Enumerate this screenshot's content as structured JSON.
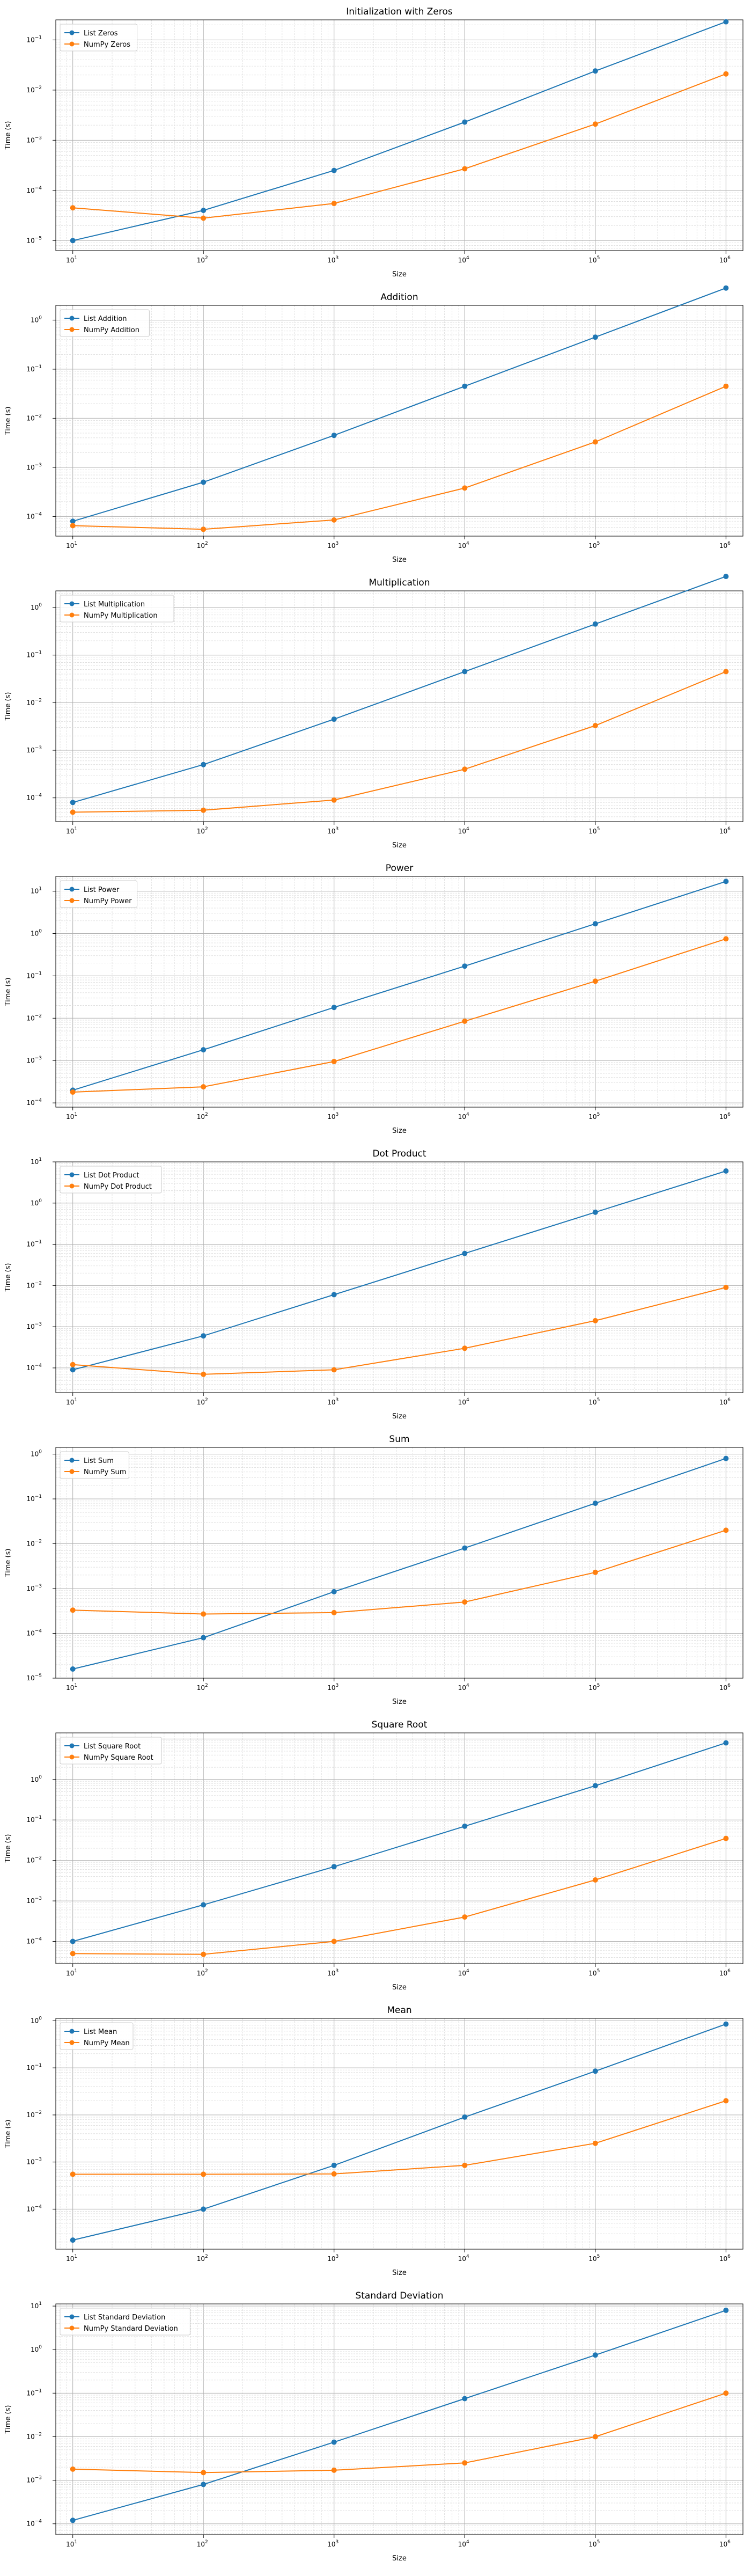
{
  "chart_data": [
    {
      "type": "line",
      "title": "Initialization with Zeros",
      "xlabel": "Size",
      "ylabel": "Time (s)",
      "xscale": "log",
      "yscale": "log",
      "x": [
        10,
        100,
        1000,
        10000,
        100000,
        1000000
      ],
      "xtick_bases": [
        "10",
        "10",
        "10",
        "10",
        "10",
        "10"
      ],
      "xtick_exps": [
        "1",
        "2",
        "3",
        "4",
        "5",
        "6"
      ],
      "yticks": [
        -5,
        -4,
        -3,
        -2,
        -1
      ],
      "ylim_exp": [
        -5.2,
        -0.6
      ],
      "grid": true,
      "legend": "upper-left",
      "series": [
        {
          "name": "List Zeros",
          "color": "#1f77b4",
          "values": [
            1e-05,
            4e-05,
            0.00025,
            0.0023,
            0.024,
            0.23
          ]
        },
        {
          "name": "NumPy Zeros",
          "color": "#ff7f0e",
          "values": [
            4.5e-05,
            2.8e-05,
            5.5e-05,
            0.00027,
            0.0021,
            0.021
          ]
        }
      ]
    },
    {
      "type": "line",
      "title": "Addition",
      "xlabel": "Size",
      "ylabel": "Time (s)",
      "xscale": "log",
      "yscale": "log",
      "x": [
        10,
        100,
        1000,
        10000,
        100000,
        1000000
      ],
      "xtick_bases": [
        "10",
        "10",
        "10",
        "10",
        "10",
        "10"
      ],
      "xtick_exps": [
        "1",
        "2",
        "3",
        "4",
        "5",
        "6"
      ],
      "yticks": [
        -4,
        -3,
        -2,
        -1,
        0
      ],
      "ylim_exp": [
        -4.4,
        0.3
      ],
      "grid": true,
      "legend": "upper-left",
      "series": [
        {
          "name": "List Addition",
          "color": "#1f77b4",
          "values": [
            8e-05,
            0.0005,
            0.0045,
            0.045,
            0.45,
            4.5
          ]
        },
        {
          "name": "NumPy Addition",
          "color": "#ff7f0e",
          "values": [
            6.5e-05,
            5.5e-05,
            8.5e-05,
            0.00038,
            0.0033,
            0.045
          ]
        }
      ]
    },
    {
      "type": "line",
      "title": "Multiplication",
      "xlabel": "Size",
      "ylabel": "Time (s)",
      "xscale": "log",
      "yscale": "log",
      "x": [
        10,
        100,
        1000,
        10000,
        100000,
        1000000
      ],
      "xtick_bases": [
        "10",
        "10",
        "10",
        "10",
        "10",
        "10"
      ],
      "xtick_exps": [
        "1",
        "2",
        "3",
        "4",
        "5",
        "6"
      ],
      "yticks": [
        -4,
        -3,
        -2,
        -1,
        0
      ],
      "ylim_exp": [
        -4.5,
        0.35
      ],
      "grid": true,
      "legend": "upper-left",
      "series": [
        {
          "name": "List Multiplication",
          "color": "#1f77b4",
          "values": [
            8e-05,
            0.0005,
            0.0045,
            0.045,
            0.45,
            4.5
          ]
        },
        {
          "name": "NumPy Multiplication",
          "color": "#ff7f0e",
          "values": [
            5e-05,
            5.5e-05,
            9e-05,
            0.0004,
            0.0033,
            0.045
          ]
        }
      ]
    },
    {
      "type": "line",
      "title": "Power",
      "xlabel": "Size",
      "ylabel": "Time (s)",
      "xscale": "log",
      "yscale": "log",
      "x": [
        10,
        100,
        1000,
        10000,
        100000,
        1000000
      ],
      "xtick_bases": [
        "10",
        "10",
        "10",
        "10",
        "10",
        "10"
      ],
      "xtick_exps": [
        "1",
        "2",
        "3",
        "4",
        "5",
        "6"
      ],
      "yticks": [
        -4,
        -3,
        -2,
        -1,
        0,
        1
      ],
      "ylim_exp": [
        -4.1,
        1.35
      ],
      "grid": true,
      "legend": "upper-left",
      "series": [
        {
          "name": "List Power",
          "color": "#1f77b4",
          "values": [
            0.0002,
            0.0018,
            0.018,
            0.17,
            1.7,
            17
          ]
        },
        {
          "name": "NumPy Power",
          "color": "#ff7f0e",
          "values": [
            0.00018,
            0.00024,
            0.00095,
            0.0085,
            0.075,
            0.75
          ]
        }
      ]
    },
    {
      "type": "line",
      "title": "Dot Product",
      "xlabel": "Size",
      "ylabel": "Time (s)",
      "xscale": "log",
      "yscale": "log",
      "x": [
        10,
        100,
        1000,
        10000,
        100000,
        1000000
      ],
      "xtick_bases": [
        "10",
        "10",
        "10",
        "10",
        "10",
        "10"
      ],
      "xtick_exps": [
        "1",
        "2",
        "3",
        "4",
        "5",
        "6"
      ],
      "yticks": [
        -4,
        -3,
        -2,
        -1,
        0,
        1
      ],
      "ylim_exp": [
        -4.6,
        1.0
      ],
      "grid": true,
      "legend": "upper-left",
      "series": [
        {
          "name": "List Dot Product",
          "color": "#1f77b4",
          "values": [
            9e-05,
            0.0006,
            0.006,
            0.06,
            0.6,
            6
          ]
        },
        {
          "name": "NumPy Dot Product",
          "color": "#ff7f0e",
          "values": [
            0.00012,
            7e-05,
            9e-05,
            0.0003,
            0.0014,
            0.009
          ]
        }
      ]
    },
    {
      "type": "line",
      "title": "Sum",
      "xlabel": "Size",
      "ylabel": "Time (s)",
      "xscale": "log",
      "yscale": "log",
      "x": [
        10,
        100,
        1000,
        10000,
        100000,
        1000000
      ],
      "xtick_bases": [
        "10",
        "10",
        "10",
        "10",
        "10",
        "10"
      ],
      "xtick_exps": [
        "1",
        "2",
        "3",
        "4",
        "5",
        "6"
      ],
      "yticks": [
        -5,
        -4,
        -3,
        -2,
        -1,
        0
      ],
      "ylim_exp": [
        -5.0,
        0.15
      ],
      "grid": true,
      "legend": "upper-left",
      "series": [
        {
          "name": "List Sum",
          "color": "#1f77b4",
          "values": [
            1.6e-05,
            8e-05,
            0.00085,
            0.008,
            0.08,
            0.8
          ]
        },
        {
          "name": "NumPy Sum",
          "color": "#ff7f0e",
          "values": [
            0.00033,
            0.00027,
            0.00029,
            0.0005,
            0.0023,
            0.02
          ]
        }
      ]
    },
    {
      "type": "line",
      "title": "Square Root",
      "xlabel": "Size",
      "ylabel": "Time (s)",
      "xscale": "log",
      "yscale": "log",
      "x": [
        10,
        100,
        1000,
        10000,
        100000,
        1000000
      ],
      "xtick_bases": [
        "10",
        "10",
        "10",
        "10",
        "10",
        "10"
      ],
      "xtick_exps": [
        "1",
        "2",
        "3",
        "4",
        "5",
        "6"
      ],
      "yticks": [
        -4,
        -3,
        -2,
        -1,
        0
      ],
      "ylim_exp": [
        -4.55,
        1.15
      ],
      "grid": true,
      "legend": "upper-left",
      "series": [
        {
          "name": "List Square Root",
          "color": "#1f77b4",
          "values": [
            0.0001,
            0.0008,
            0.007,
            0.07,
            0.7,
            8
          ]
        },
        {
          "name": "NumPy Square Root",
          "color": "#ff7f0e",
          "values": [
            5e-05,
            4.8e-05,
            0.0001,
            0.0004,
            0.0033,
            0.035
          ]
        }
      ]
    },
    {
      "type": "line",
      "title": "Mean",
      "xlabel": "Size",
      "ylabel": "Time (s)",
      "xscale": "log",
      "yscale": "log",
      "x": [
        10,
        100,
        1000,
        10000,
        100000,
        1000000
      ],
      "xtick_bases": [
        "10",
        "10",
        "10",
        "10",
        "10",
        "10"
      ],
      "xtick_exps": [
        "1",
        "2",
        "3",
        "4",
        "5",
        "6"
      ],
      "yticks": [
        -4,
        -3,
        -2,
        -1,
        0
      ],
      "ylim_exp": [
        -4.85,
        0.05
      ],
      "grid": true,
      "legend": "upper-left",
      "series": [
        {
          "name": "List Mean",
          "color": "#1f77b4",
          "values": [
            2.2e-05,
            0.0001,
            0.00085,
            0.009,
            0.085,
            0.85
          ]
        },
        {
          "name": "NumPy Mean",
          "color": "#ff7f0e",
          "values": [
            0.00055,
            0.00055,
            0.00056,
            0.00085,
            0.0025,
            0.02
          ]
        }
      ]
    },
    {
      "type": "line",
      "title": "Standard Deviation",
      "xlabel": "Size",
      "ylabel": "Time (s)",
      "xscale": "log",
      "yscale": "log",
      "x": [
        10,
        100,
        1000,
        10000,
        100000,
        1000000
      ],
      "xtick_bases": [
        "10",
        "10",
        "10",
        "10",
        "10",
        "10"
      ],
      "xtick_exps": [
        "1",
        "2",
        "3",
        "4",
        "5",
        "6"
      ],
      "yticks": [
        -4,
        -3,
        -2,
        -1,
        0,
        1
      ],
      "ylim_exp": [
        -4.25,
        1.05
      ],
      "grid": true,
      "legend": "upper-left",
      "series": [
        {
          "name": "List Standard Deviation",
          "color": "#1f77b4",
          "values": [
            0.00012,
            0.0008,
            0.0075,
            0.075,
            0.75,
            8
          ]
        },
        {
          "name": "NumPy Standard Deviation",
          "color": "#ff7f0e",
          "values": [
            0.0018,
            0.0015,
            0.0017,
            0.0025,
            0.01,
            0.1
          ]
        }
      ]
    }
  ]
}
